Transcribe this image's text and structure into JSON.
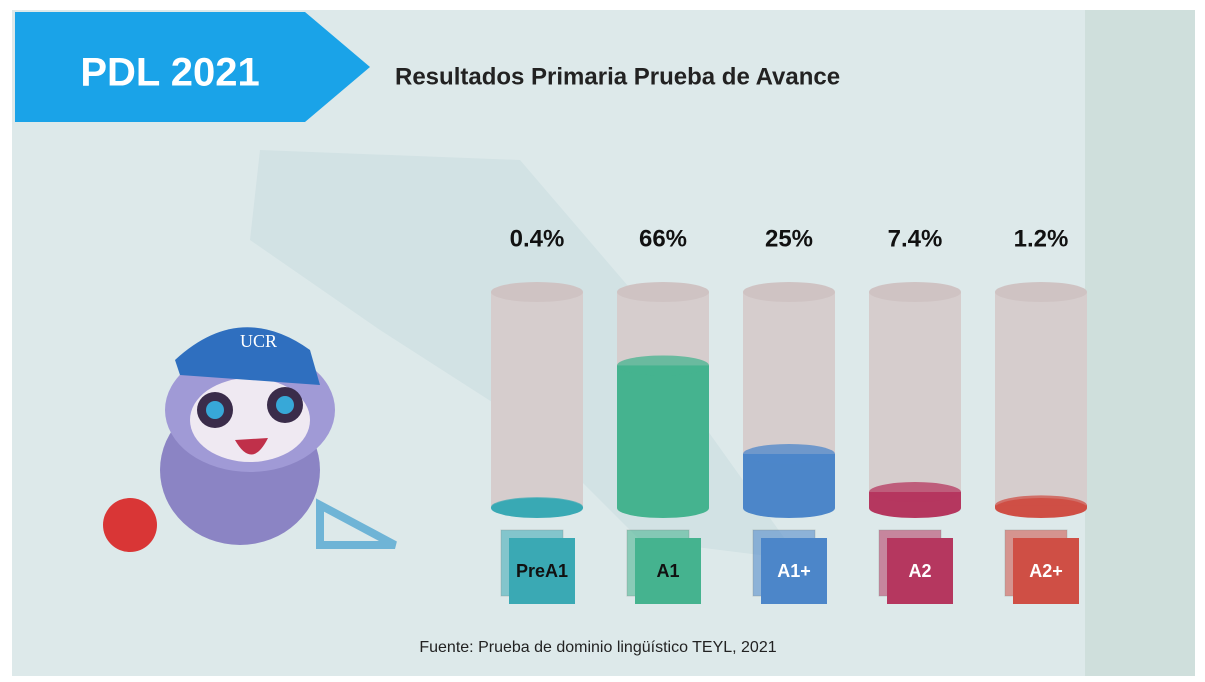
{
  "chart_data": {
    "type": "bar",
    "banner": "PDL 2021",
    "title": "Resultados Primaria Prueba de Avance",
    "source": "Fuente: Prueba de dominio lingüístico TEYL, 2021",
    "categories": [
      "PreA1",
      "A1",
      "A1+",
      "A2",
      "A2+"
    ],
    "values": [
      0.4,
      66,
      25,
      7.4,
      1.2
    ],
    "value_labels": [
      "0.4%",
      "66%",
      "25%",
      "7.4%",
      "1.2%"
    ],
    "colors": [
      "#3aa9b4",
      "#45b38f",
      "#4c86c9",
      "#b5375f",
      "#cf4f45"
    ],
    "ylim": [
      0,
      100
    ]
  }
}
